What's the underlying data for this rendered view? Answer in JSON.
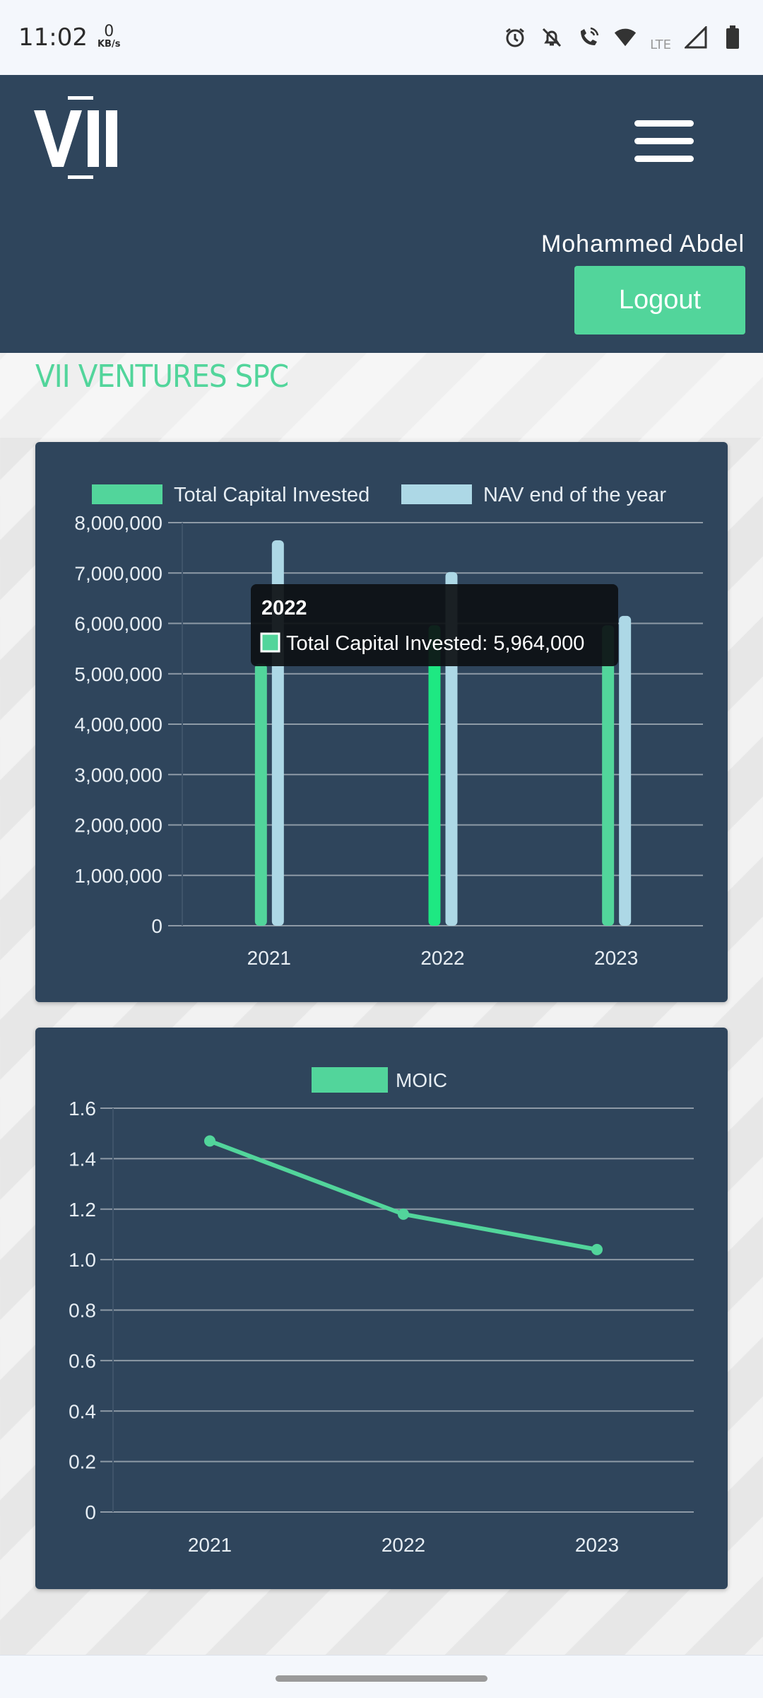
{
  "status_bar": {
    "time": "11:02",
    "speed_value": "0",
    "speed_unit": "KB/s",
    "network_label": "LTE",
    "icons": [
      "alarm-icon",
      "bell-off-icon",
      "wifi-call-icon",
      "wifi-icon",
      "signal-icon",
      "battery-icon"
    ]
  },
  "header": {
    "logo_text": "VII",
    "user_name": "Mohammed Abdel",
    "logout_label": "Logout"
  },
  "company": {
    "name": "VII VENTURES SPC"
  },
  "colors": {
    "header_bg": "#2f455c",
    "accent": "#52d59b",
    "nav_bar": "#add8e6",
    "highlight_bar": "#1ee882",
    "tooltip_bg": "#0d1014"
  },
  "chart_data": [
    {
      "type": "bar",
      "categories": [
        "2021",
        "2022",
        "2023"
      ],
      "series": [
        {
          "name": "Total Capital Invested",
          "values": [
            5200000,
            5964000,
            5964000
          ],
          "color": "#52d59b"
        },
        {
          "name": "NAV end of the year",
          "values": [
            7650000,
            7020000,
            6150000
          ],
          "color": "#add8e6"
        }
      ],
      "ylim": [
        0,
        8000000
      ],
      "yticks": [
        "8,000,000",
        "7,000,000",
        "6,000,000",
        "5,000,000",
        "4,000,000",
        "3,000,000",
        "2,000,000",
        "1,000,000",
        "0"
      ],
      "ytick_values": [
        8000000,
        7000000,
        6000000,
        5000000,
        4000000,
        3000000,
        2000000,
        1000000,
        0
      ],
      "legend": "top",
      "grid": true,
      "tooltip": {
        "title": "2022",
        "label": "Total Capital Invested: 5,964,000",
        "category_index": 1
      }
    },
    {
      "type": "line",
      "categories": [
        "2021",
        "2022",
        "2023"
      ],
      "series": [
        {
          "name": "MOIC",
          "values": [
            1.47,
            1.18,
            1.04
          ],
          "color": "#52d59b"
        }
      ],
      "ylim": [
        0,
        1.6
      ],
      "yticks": [
        "1.6",
        "1.4",
        "1.2",
        "1.0",
        "0.8",
        "0.6",
        "0.4",
        "0.2",
        "0"
      ],
      "ytick_values": [
        1.6,
        1.4,
        1.2,
        1.0,
        0.8,
        0.6,
        0.4,
        0.2,
        0
      ],
      "legend": "top",
      "grid": true
    }
  ]
}
